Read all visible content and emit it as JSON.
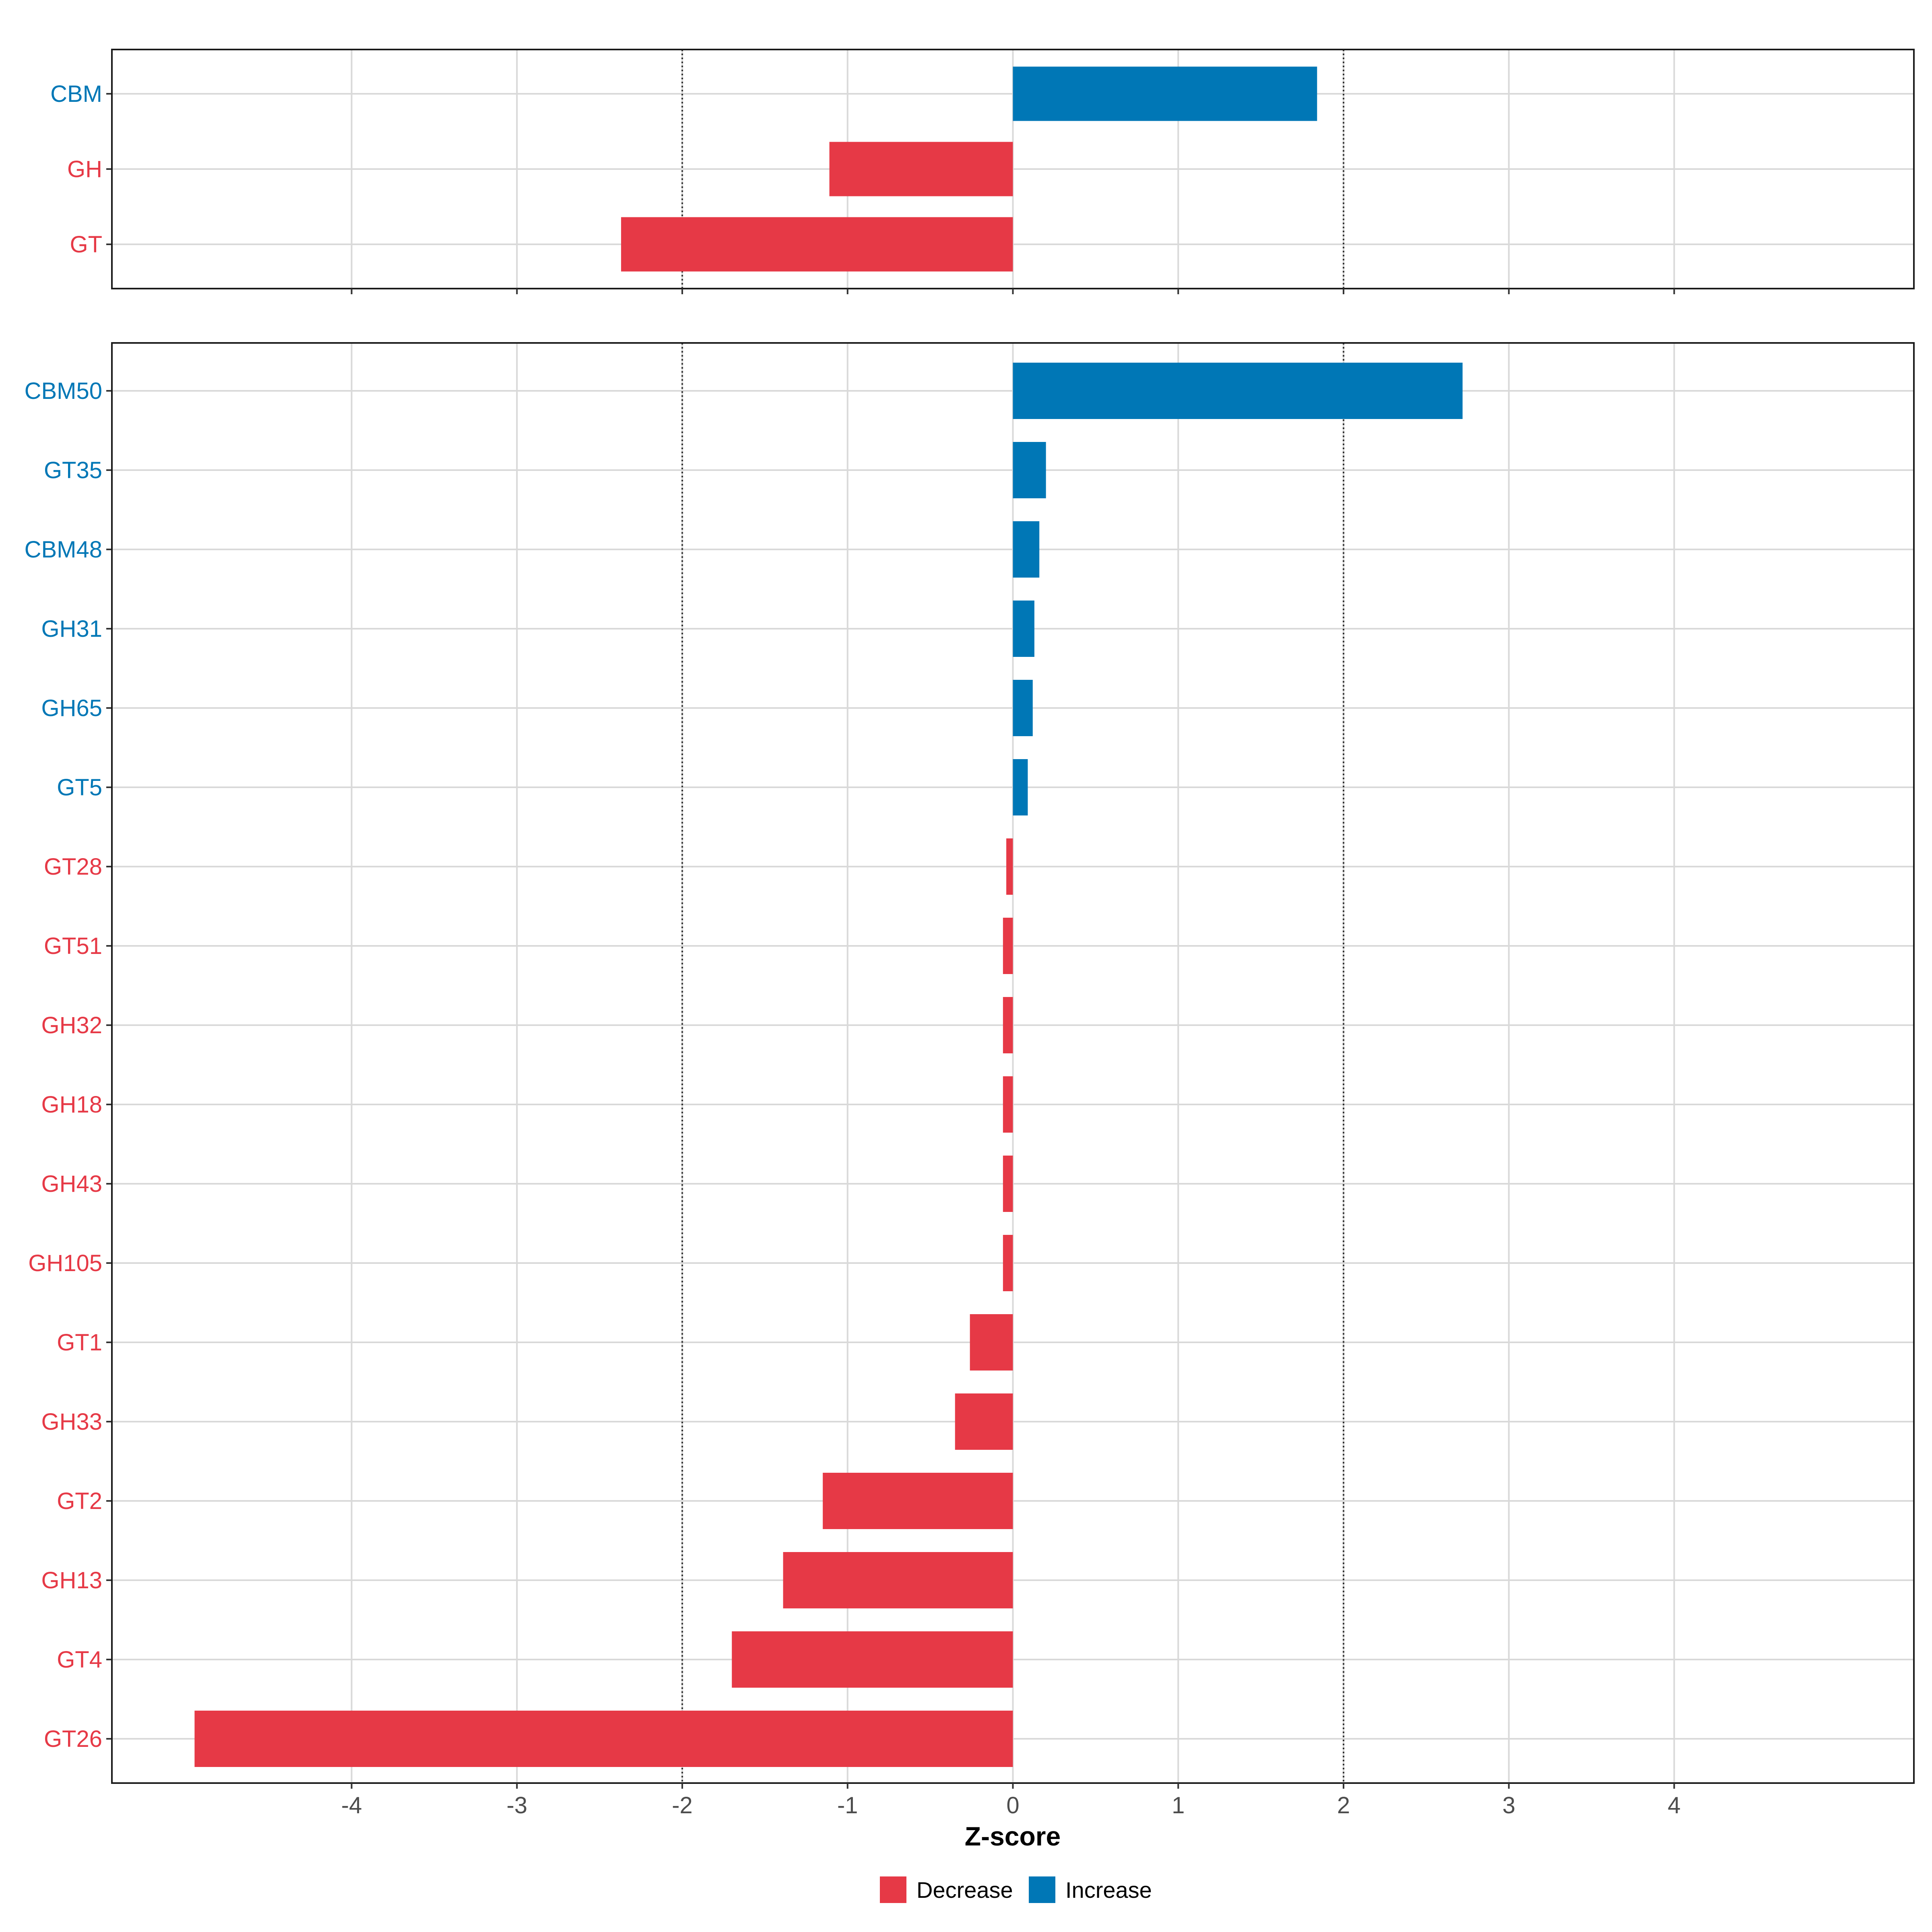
{
  "colors": {
    "decrease": "#e63946",
    "increase": "#0077b6"
  },
  "chart_data": [
    {
      "type": "bar",
      "orientation": "horizontal",
      "panel": "top",
      "categories": [
        "CBM",
        "GH",
        "GT"
      ],
      "values": [
        1.84,
        -1.11,
        -2.37
      ],
      "xlim": [
        -5.45,
        5.45
      ],
      "xticks": [
        -4,
        -3,
        -2,
        -1,
        0,
        1,
        2,
        3,
        4
      ],
      "reference_lines": [
        -2,
        2
      ],
      "grid": true
    },
    {
      "type": "bar",
      "orientation": "horizontal",
      "panel": "bottom",
      "categories": [
        "CBM50",
        "GT35",
        "CBM48",
        "GH31",
        "GH65",
        "GT5",
        "GT28",
        "GT51",
        "GH32",
        "GH18",
        "GH43",
        "GH105",
        "GT1",
        "GH33",
        "GT2",
        "GH13",
        "GT4",
        "GT26"
      ],
      "values": [
        2.72,
        0.2,
        0.16,
        0.13,
        0.12,
        0.09,
        -0.04,
        -0.06,
        -0.06,
        -0.06,
        -0.06,
        -0.06,
        -0.26,
        -0.35,
        -1.15,
        -1.39,
        -1.7,
        -4.95
      ],
      "xlim": [
        -5.45,
        5.45
      ],
      "xticks": [
        -4,
        -3,
        -2,
        -1,
        0,
        1,
        2,
        3,
        4
      ],
      "tick_labels": [
        "-4",
        "-3",
        "-2",
        "-1",
        "0",
        "1",
        "2",
        "3",
        "4"
      ],
      "xlabel": "Z-score",
      "reference_lines": [
        -2,
        2
      ],
      "grid": true,
      "legend": {
        "position": "bottom",
        "entries": [
          "Decrease",
          "Increase"
        ]
      }
    }
  ]
}
